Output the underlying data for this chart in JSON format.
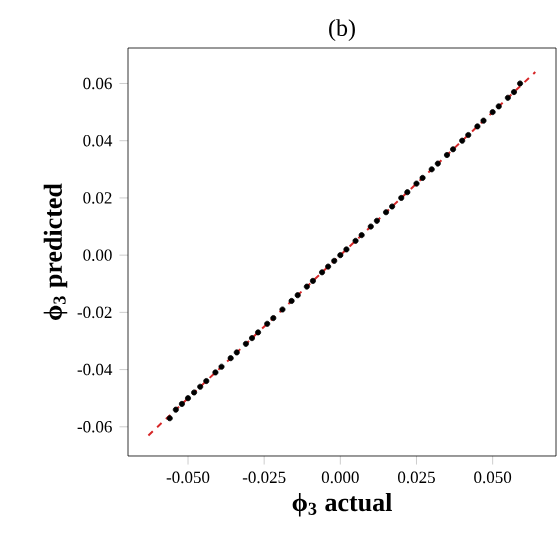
{
  "chart_data": {
    "type": "scatter",
    "title": "(b)",
    "xlabel": "ϕ$_{3}$ actual",
    "ylabel": "ϕ$_{3}$ predicted",
    "xlim": [
      -0.0697,
      0.0708
    ],
    "ylim": [
      -0.0702,
      0.0724
    ],
    "xticks": [
      {
        "value": -0.05,
        "label": "-0.050"
      },
      {
        "value": -0.025,
        "label": "-0.025"
      },
      {
        "value": 0,
        "label": "0.000"
      },
      {
        "value": 0.025,
        "label": "0.025"
      },
      {
        "value": 0.05,
        "label": "0.050"
      }
    ],
    "yticks": [
      {
        "value": -0.06,
        "label": "-0.06"
      },
      {
        "value": -0.04,
        "label": "-0.04"
      },
      {
        "value": -0.02,
        "label": "-0.02"
      },
      {
        "value": 0,
        "label": "0.00"
      },
      {
        "value": 0.02,
        "label": "0.02"
      },
      {
        "value": 0.04,
        "label": "0.04"
      },
      {
        "value": 0.06,
        "label": "0.06"
      }
    ],
    "series": [
      {
        "marker": "circle",
        "color": "#000000",
        "x": [
          -0.056,
          -0.054,
          -0.052,
          -0.05,
          -0.048,
          -0.046,
          -0.044,
          -0.041,
          -0.039,
          -0.036,
          -0.034,
          -0.031,
          -0.029,
          -0.027,
          -0.024,
          -0.022,
          -0.019,
          -0.016,
          -0.014,
          -0.011,
          -0.009,
          -0.006,
          -0.004,
          -0.002,
          0.0,
          0.002,
          0.005,
          0.007,
          0.01,
          0.012,
          0.015,
          0.017,
          0.02,
          0.022,
          0.025,
          0.027,
          0.03,
          0.032,
          0.035,
          0.037,
          0.04,
          0.042,
          0.045,
          0.047,
          0.05,
          0.052,
          0.055,
          0.057,
          0.059
        ],
        "values": [
          -0.057,
          -0.054,
          -0.052,
          -0.05,
          -0.048,
          -0.046,
          -0.044,
          -0.041,
          -0.039,
          -0.036,
          -0.034,
          -0.031,
          -0.029,
          -0.027,
          -0.024,
          -0.022,
          -0.019,
          -0.016,
          -0.014,
          -0.011,
          -0.009,
          -0.006,
          -0.004,
          -0.002,
          0.0,
          0.002,
          0.005,
          0.007,
          0.01,
          0.012,
          0.015,
          0.017,
          0.02,
          0.022,
          0.025,
          0.027,
          0.03,
          0.032,
          0.035,
          0.037,
          0.04,
          0.042,
          0.045,
          0.047,
          0.05,
          0.052,
          0.055,
          0.057,
          0.06
        ]
      },
      {
        "type": "line",
        "color": "#d62728",
        "line_style": "dashed",
        "x": [
          -0.063,
          0.064
        ],
        "values": [
          -0.063,
          0.064
        ]
      }
    ]
  }
}
